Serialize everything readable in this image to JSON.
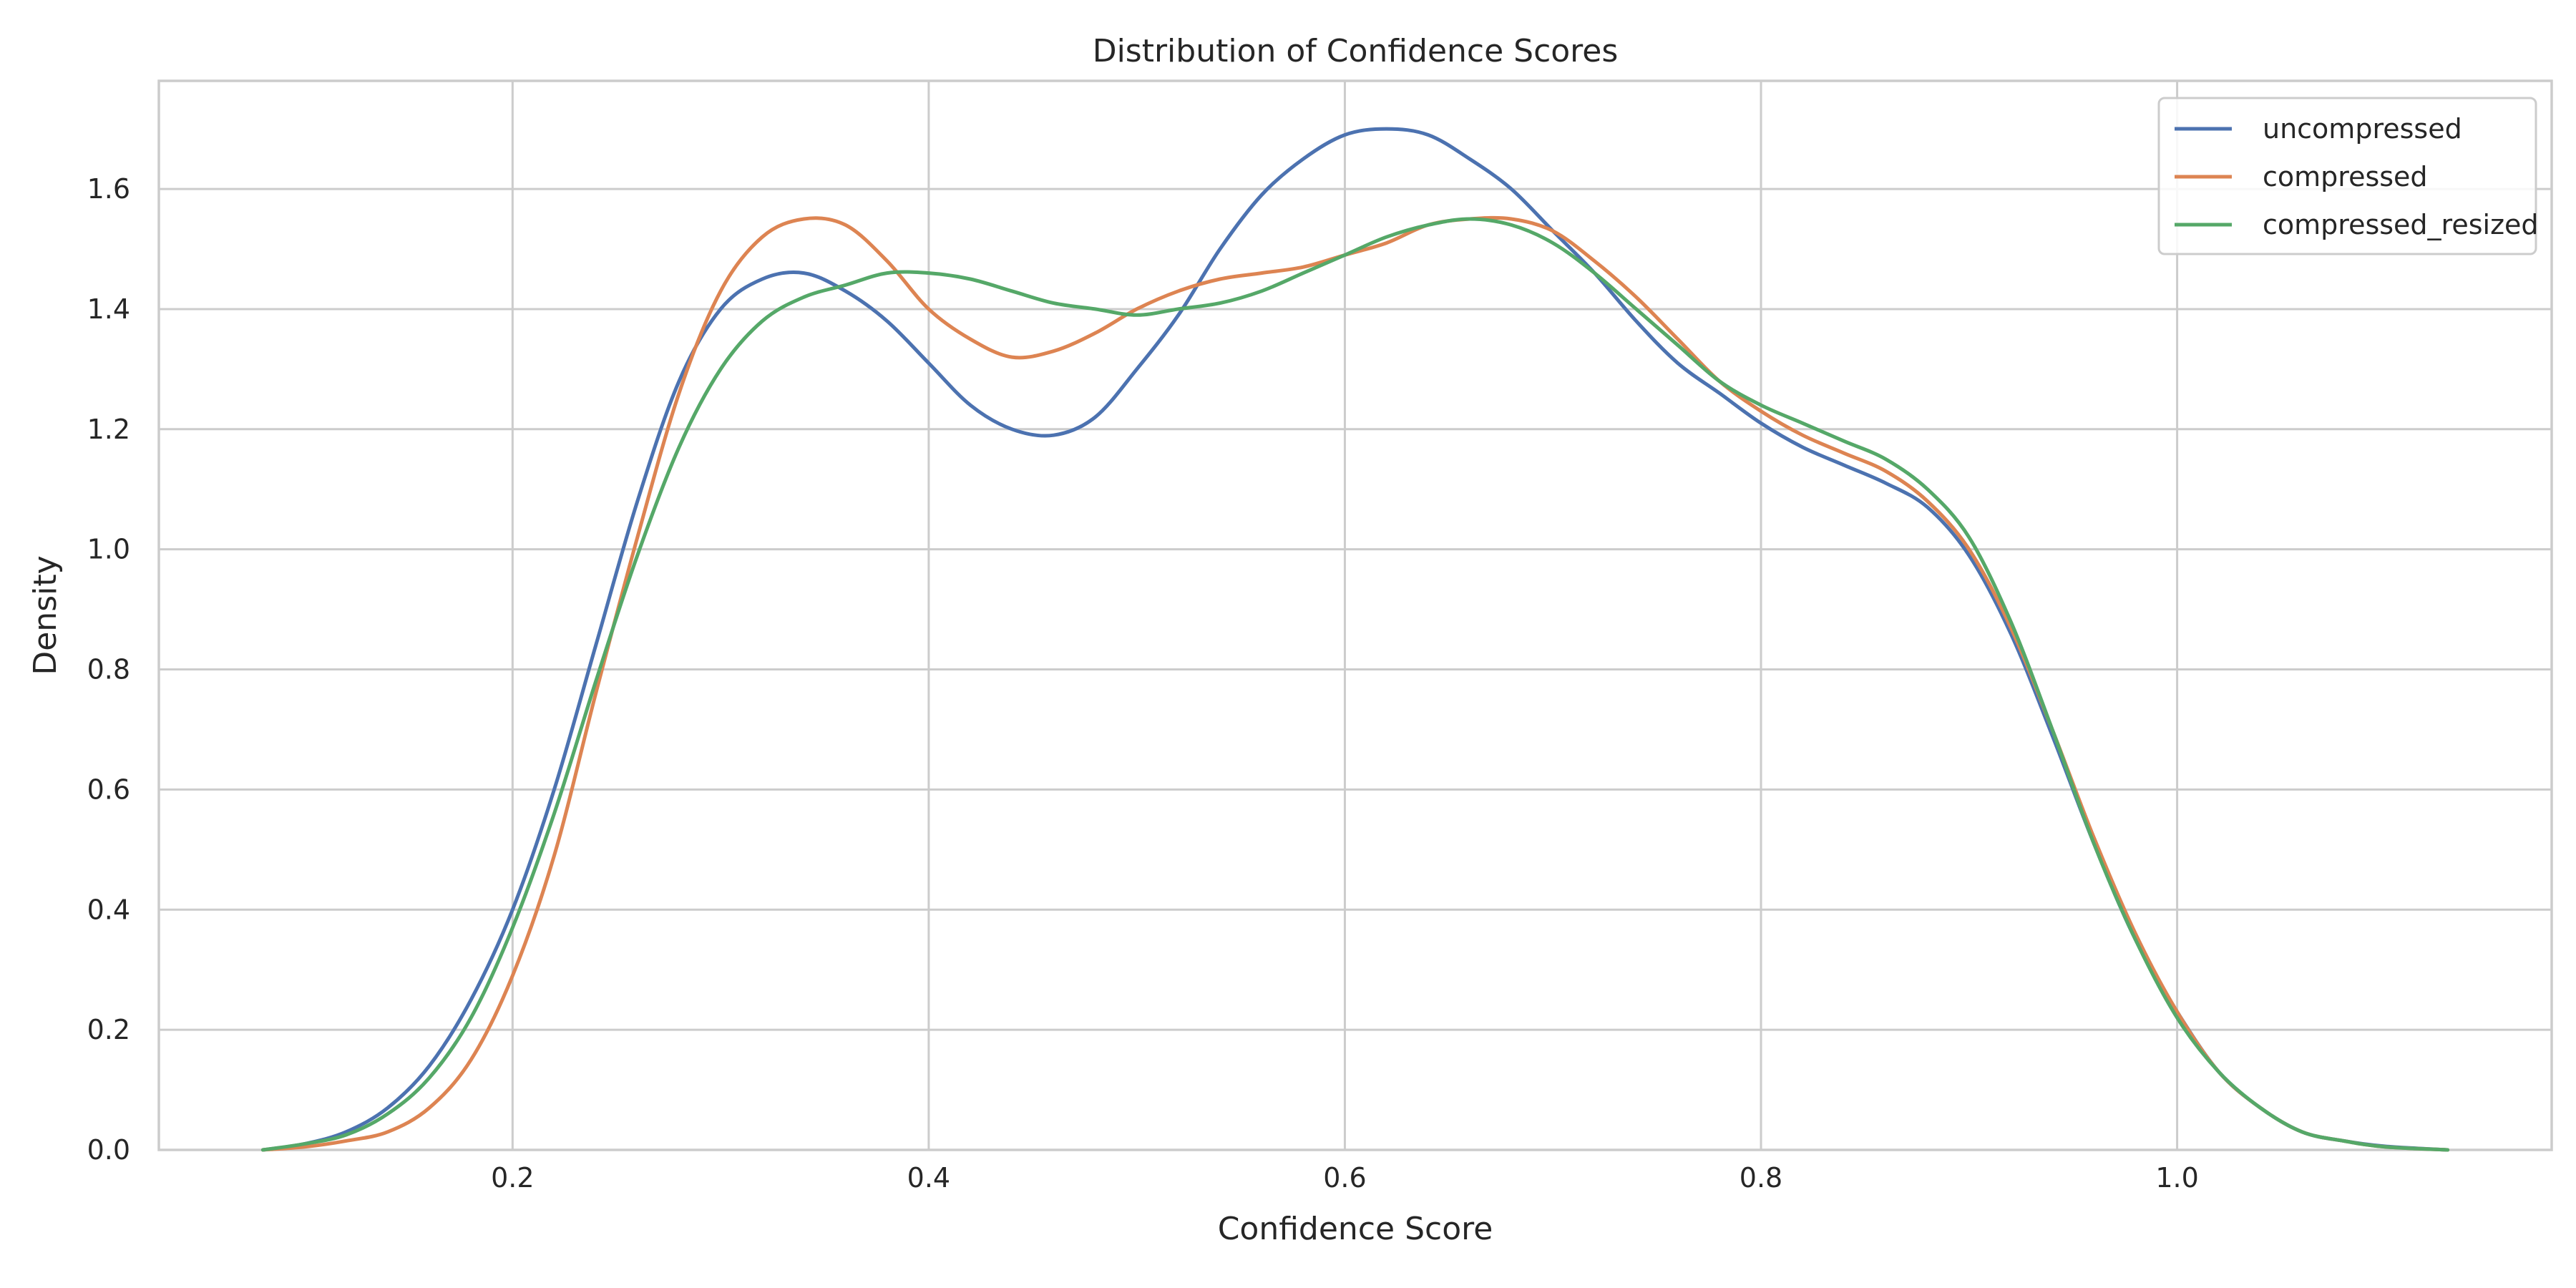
{
  "chart_data": {
    "type": "line",
    "title": "Distribution of Confidence Scores",
    "xlabel": "Confidence Score",
    "ylabel": "Density",
    "xlim": [
      0.03,
      1.18
    ],
    "ylim": [
      0.0,
      1.78
    ],
    "xticks": [
      0.2,
      0.4,
      0.6,
      0.8,
      1.0
    ],
    "xtick_labels": [
      "0.2",
      "0.4",
      "0.6",
      "0.8",
      "1.0"
    ],
    "yticks": [
      0.0,
      0.2,
      0.4,
      0.6,
      0.8,
      1.0,
      1.2,
      1.4,
      1.6
    ],
    "ytick_labels": [
      "0.0",
      "0.2",
      "0.4",
      "0.6",
      "0.8",
      "1.0",
      "1.2",
      "1.4",
      "1.6"
    ],
    "grid": true,
    "legend_position": "top-right",
    "series": [
      {
        "name": "uncompressed",
        "color": "#4c72b0",
        "points": [
          [
            0.08,
            0.0
          ],
          [
            0.1,
            0.01
          ],
          [
            0.12,
            0.03
          ],
          [
            0.14,
            0.07
          ],
          [
            0.16,
            0.14
          ],
          [
            0.18,
            0.25
          ],
          [
            0.2,
            0.4
          ],
          [
            0.22,
            0.6
          ],
          [
            0.24,
            0.84
          ],
          [
            0.26,
            1.08
          ],
          [
            0.28,
            1.28
          ],
          [
            0.3,
            1.4
          ],
          [
            0.32,
            1.45
          ],
          [
            0.34,
            1.46
          ],
          [
            0.36,
            1.43
          ],
          [
            0.38,
            1.38
          ],
          [
            0.4,
            1.31
          ],
          [
            0.42,
            1.24
          ],
          [
            0.44,
            1.2
          ],
          [
            0.46,
            1.19
          ],
          [
            0.48,
            1.22
          ],
          [
            0.5,
            1.3
          ],
          [
            0.52,
            1.39
          ],
          [
            0.54,
            1.5
          ],
          [
            0.56,
            1.59
          ],
          [
            0.58,
            1.65
          ],
          [
            0.6,
            1.69
          ],
          [
            0.62,
            1.7
          ],
          [
            0.64,
            1.69
          ],
          [
            0.66,
            1.65
          ],
          [
            0.68,
            1.6
          ],
          [
            0.7,
            1.53
          ],
          [
            0.72,
            1.46
          ],
          [
            0.74,
            1.38
          ],
          [
            0.76,
            1.31
          ],
          [
            0.78,
            1.26
          ],
          [
            0.8,
            1.21
          ],
          [
            0.82,
            1.17
          ],
          [
            0.84,
            1.14
          ],
          [
            0.86,
            1.11
          ],
          [
            0.88,
            1.07
          ],
          [
            0.9,
            0.99
          ],
          [
            0.92,
            0.86
          ],
          [
            0.94,
            0.69
          ],
          [
            0.96,
            0.51
          ],
          [
            0.98,
            0.35
          ],
          [
            1.0,
            0.23
          ],
          [
            1.02,
            0.13
          ],
          [
            1.04,
            0.07
          ],
          [
            1.06,
            0.03
          ],
          [
            1.08,
            0.015
          ],
          [
            1.1,
            0.006
          ],
          [
            1.13,
            0.0
          ]
        ]
      },
      {
        "name": "compressed",
        "color": "#dd8452",
        "points": [
          [
            0.08,
            0.0
          ],
          [
            0.1,
            0.005
          ],
          [
            0.12,
            0.015
          ],
          [
            0.14,
            0.03
          ],
          [
            0.16,
            0.07
          ],
          [
            0.18,
            0.15
          ],
          [
            0.2,
            0.29
          ],
          [
            0.22,
            0.49
          ],
          [
            0.24,
            0.76
          ],
          [
            0.26,
            1.02
          ],
          [
            0.28,
            1.26
          ],
          [
            0.3,
            1.43
          ],
          [
            0.32,
            1.52
          ],
          [
            0.34,
            1.55
          ],
          [
            0.36,
            1.54
          ],
          [
            0.38,
            1.48
          ],
          [
            0.4,
            1.4
          ],
          [
            0.42,
            1.35
          ],
          [
            0.44,
            1.32
          ],
          [
            0.46,
            1.33
          ],
          [
            0.48,
            1.36
          ],
          [
            0.5,
            1.4
          ],
          [
            0.52,
            1.43
          ],
          [
            0.54,
            1.45
          ],
          [
            0.56,
            1.46
          ],
          [
            0.58,
            1.47
          ],
          [
            0.6,
            1.49
          ],
          [
            0.62,
            1.51
          ],
          [
            0.64,
            1.54
          ],
          [
            0.66,
            1.55
          ],
          [
            0.68,
            1.55
          ],
          [
            0.7,
            1.53
          ],
          [
            0.72,
            1.48
          ],
          [
            0.74,
            1.42
          ],
          [
            0.76,
            1.35
          ],
          [
            0.78,
            1.28
          ],
          [
            0.8,
            1.23
          ],
          [
            0.82,
            1.19
          ],
          [
            0.84,
            1.16
          ],
          [
            0.86,
            1.13
          ],
          [
            0.88,
            1.08
          ],
          [
            0.9,
            1.0
          ],
          [
            0.92,
            0.87
          ],
          [
            0.94,
            0.7
          ],
          [
            0.96,
            0.52
          ],
          [
            0.98,
            0.36
          ],
          [
            1.0,
            0.23
          ],
          [
            1.02,
            0.13
          ],
          [
            1.04,
            0.07
          ],
          [
            1.06,
            0.03
          ],
          [
            1.08,
            0.015
          ],
          [
            1.1,
            0.005
          ],
          [
            1.13,
            0.0
          ]
        ]
      },
      {
        "name": "compressed_resized",
        "color": "#55a868",
        "points": [
          [
            0.08,
            0.0
          ],
          [
            0.1,
            0.01
          ],
          [
            0.12,
            0.025
          ],
          [
            0.14,
            0.06
          ],
          [
            0.16,
            0.12
          ],
          [
            0.18,
            0.22
          ],
          [
            0.2,
            0.37
          ],
          [
            0.22,
            0.56
          ],
          [
            0.24,
            0.78
          ],
          [
            0.26,
            0.99
          ],
          [
            0.28,
            1.17
          ],
          [
            0.3,
            1.3
          ],
          [
            0.32,
            1.38
          ],
          [
            0.34,
            1.42
          ],
          [
            0.36,
            1.44
          ],
          [
            0.38,
            1.46
          ],
          [
            0.4,
            1.46
          ],
          [
            0.42,
            1.45
          ],
          [
            0.44,
            1.43
          ],
          [
            0.46,
            1.41
          ],
          [
            0.48,
            1.4
          ],
          [
            0.5,
            1.39
          ],
          [
            0.52,
            1.4
          ],
          [
            0.54,
            1.41
          ],
          [
            0.56,
            1.43
          ],
          [
            0.58,
            1.46
          ],
          [
            0.6,
            1.49
          ],
          [
            0.62,
            1.52
          ],
          [
            0.64,
            1.54
          ],
          [
            0.66,
            1.55
          ],
          [
            0.68,
            1.54
          ],
          [
            0.7,
            1.51
          ],
          [
            0.72,
            1.46
          ],
          [
            0.74,
            1.4
          ],
          [
            0.76,
            1.34
          ],
          [
            0.78,
            1.28
          ],
          [
            0.8,
            1.24
          ],
          [
            0.82,
            1.21
          ],
          [
            0.84,
            1.18
          ],
          [
            0.86,
            1.15
          ],
          [
            0.88,
            1.1
          ],
          [
            0.9,
            1.02
          ],
          [
            0.92,
            0.88
          ],
          [
            0.94,
            0.7
          ],
          [
            0.96,
            0.51
          ],
          [
            0.98,
            0.35
          ],
          [
            1.0,
            0.22
          ],
          [
            1.02,
            0.13
          ],
          [
            1.04,
            0.07
          ],
          [
            1.06,
            0.03
          ],
          [
            1.08,
            0.015
          ],
          [
            1.1,
            0.005
          ],
          [
            1.13,
            0.0
          ]
        ]
      }
    ]
  }
}
